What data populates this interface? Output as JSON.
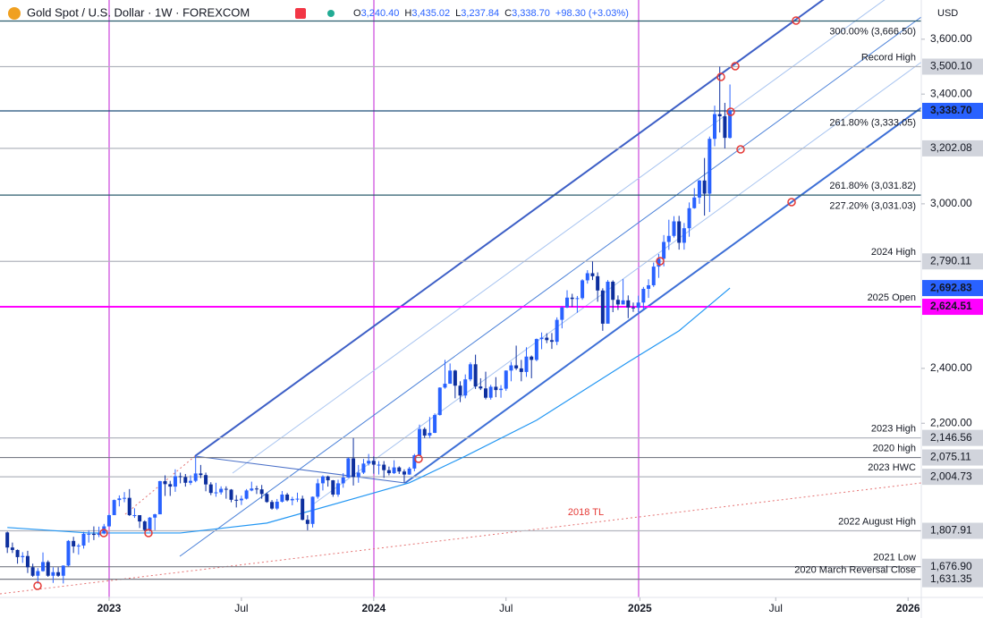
{
  "chart_data": {
    "type": "candlestick",
    "title": "Gold Spot / U.S. Dollar · 1W · FOREXCOM",
    "ohlc_header": [
      {
        "key": "O",
        "value": "3,240.40"
      },
      {
        "key": "H",
        "value": "3,435.02"
      },
      {
        "key": "L",
        "value": "3,237.84"
      },
      {
        "key": "C",
        "value": "3,338.70"
      }
    ],
    "change": "+98.30 (+3.03%)",
    "currency": "USD",
    "up_color": "#2962ff",
    "down_color": "#0d2f9e",
    "xlim": [
      -1.44,
      179.6
    ],
    "xticks": [
      {
        "value": 20,
        "label": "2023"
      },
      {
        "value": 46,
        "label": "Jul"
      },
      {
        "value": 72,
        "label": "2024"
      },
      {
        "value": 98,
        "label": "Jul"
      },
      {
        "value": 124.3,
        "label": "2025"
      },
      {
        "value": 151,
        "label": "Jul"
      },
      {
        "value": 177,
        "label": "2026"
      }
    ],
    "ylim": [
      1565,
      3743
    ],
    "yticks": [
      {
        "value": 3600,
        "label": "3,600.00"
      },
      {
        "value": 3400,
        "label": "3,400.00"
      },
      {
        "value": 3000,
        "label": "3,000.00"
      },
      {
        "value": 2400,
        "label": "2,400.00"
      },
      {
        "value": 2200,
        "label": "2,200.00"
      }
    ],
    "candles": [
      [
        1802,
        1805,
        1727,
        1747
      ],
      [
        1747,
        1765,
        1727,
        1738
      ],
      [
        1738,
        1740,
        1688,
        1712
      ],
      [
        1712,
        1730,
        1691,
        1716
      ],
      [
        1716,
        1735,
        1654,
        1675
      ],
      [
        1675,
        1688,
        1640,
        1644
      ],
      [
        1644,
        1672,
        1615,
        1661
      ],
      [
        1661,
        1729,
        1659,
        1694
      ],
      [
        1694,
        1700,
        1640,
        1644
      ],
      [
        1644,
        1675,
        1618,
        1657
      ],
      [
        1657,
        1675,
        1640,
        1644
      ],
      [
        1644,
        1682,
        1616,
        1681
      ],
      [
        1681,
        1774,
        1678,
        1771
      ],
      [
        1771,
        1786,
        1727,
        1751
      ],
      [
        1751,
        1761,
        1721,
        1754
      ],
      [
        1754,
        1804,
        1743,
        1797
      ],
      [
        1797,
        1810,
        1765,
        1797
      ],
      [
        1797,
        1824,
        1774,
        1793
      ],
      [
        1793,
        1823,
        1785,
        1798
      ],
      [
        1798,
        1833,
        1795,
        1824
      ],
      [
        1824,
        1870,
        1830,
        1865
      ],
      [
        1865,
        1922,
        1867,
        1920
      ],
      [
        1920,
        1937,
        1897,
        1926
      ],
      [
        1926,
        1949,
        1912,
        1928
      ],
      [
        1928,
        1960,
        1862,
        1865
      ],
      [
        1865,
        1890,
        1855,
        1865
      ],
      [
        1865,
        1865,
        1818,
        1842
      ],
      [
        1842,
        1846,
        1806,
        1811
      ],
      [
        1811,
        1858,
        1805,
        1856
      ],
      [
        1856,
        1870,
        1810,
        1868
      ],
      [
        1868,
        1990,
        1885,
        1989
      ],
      [
        1989,
        2010,
        1935,
        1978
      ],
      [
        1978,
        1990,
        1935,
        1969
      ],
      [
        1969,
        2032,
        1950,
        2007
      ],
      [
        2007,
        2020,
        1981,
        2004
      ],
      [
        2004,
        2015,
        1969,
        1983
      ],
      [
        1983,
        2010,
        1975,
        1990
      ],
      [
        1990,
        2081,
        1985,
        2017
      ],
      [
        2017,
        2048,
        2000,
        2011
      ],
      [
        2011,
        2020,
        1952,
        1977
      ],
      [
        1977,
        1985,
        1938,
        1946
      ],
      [
        1946,
        1983,
        1932,
        1948
      ],
      [
        1948,
        1970,
        1940,
        1961
      ],
      [
        1961,
        1970,
        1925,
        1958
      ],
      [
        1958,
        1960,
        1912,
        1921
      ],
      [
        1921,
        1938,
        1893,
        1919
      ],
      [
        1919,
        1936,
        1902,
        1925
      ],
      [
        1925,
        1960,
        1922,
        1955
      ],
      [
        1955,
        1987,
        1952,
        1962
      ],
      [
        1962,
        1972,
        1942,
        1959
      ],
      [
        1959,
        1975,
        1925,
        1942
      ],
      [
        1942,
        1947,
        1910,
        1913
      ],
      [
        1913,
        1920,
        1885,
        1889
      ],
      [
        1889,
        1924,
        1884,
        1914
      ],
      [
        1914,
        1953,
        1911,
        1940
      ],
      [
        1940,
        1946,
        1915,
        1919
      ],
      [
        1919,
        1932,
        1901,
        1924
      ],
      [
        1924,
        1947,
        1913,
        1925
      ],
      [
        1925,
        1936,
        1846,
        1848
      ],
      [
        1848,
        1865,
        1810,
        1833
      ],
      [
        1833,
        1933,
        1820,
        1932
      ],
      [
        1932,
        1997,
        1925,
        1981
      ],
      [
        1981,
        2010,
        1955,
        2006
      ],
      [
        2006,
        2009,
        1969,
        1992
      ],
      [
        1992,
        1993,
        1932,
        1940
      ],
      [
        1940,
        1994,
        1932,
        1981
      ],
      [
        1981,
        2018,
        1965,
        2002
      ],
      [
        2002,
        2075,
        2001,
        2072
      ],
      [
        2072,
        2146,
        1973,
        2004
      ],
      [
        2004,
        2048,
        1983,
        2020
      ],
      [
        2020,
        2070,
        2015,
        2053
      ],
      [
        2053,
        2088,
        2046,
        2063
      ],
      [
        2063,
        2079,
        2016,
        2049
      ],
      [
        2049,
        2062,
        2013,
        2049
      ],
      [
        2049,
        2062,
        2001,
        2029
      ],
      [
        2029,
        2042,
        2010,
        2018
      ],
      [
        2018,
        2065,
        2015,
        2039
      ],
      [
        2039,
        2043,
        2015,
        2024
      ],
      [
        2024,
        2032,
        1984,
        2013
      ],
      [
        2013,
        2041,
        2012,
        2035
      ],
      [
        2035,
        2088,
        2025,
        2083
      ],
      [
        2083,
        2195,
        2083,
        2179
      ],
      [
        2179,
        2185,
        2146,
        2155
      ],
      [
        2155,
        2223,
        2146,
        2165
      ],
      [
        2165,
        2236,
        2164,
        2230
      ],
      [
        2230,
        2331,
        2228,
        2330
      ],
      [
        2330,
        2431,
        2326,
        2344
      ],
      [
        2344,
        2418,
        2354,
        2392
      ],
      [
        2392,
        2395,
        2291,
        2337
      ],
      [
        2337,
        2353,
        2277,
        2301
      ],
      [
        2301,
        2378,
        2291,
        2360
      ],
      [
        2360,
        2422,
        2353,
        2415
      ],
      [
        2415,
        2450,
        2325,
        2334
      ],
      [
        2334,
        2364,
        2321,
        2327
      ],
      [
        2327,
        2388,
        2287,
        2293
      ],
      [
        2293,
        2340,
        2286,
        2333
      ],
      [
        2333,
        2368,
        2295,
        2321
      ],
      [
        2321,
        2339,
        2293,
        2326
      ],
      [
        2326,
        2393,
        2318,
        2392
      ],
      [
        2392,
        2424,
        2353,
        2411
      ],
      [
        2411,
        2483,
        2394,
        2400
      ],
      [
        2400,
        2431,
        2353,
        2387
      ],
      [
        2387,
        2477,
        2369,
        2443
      ],
      [
        2443,
        2447,
        2364,
        2431
      ],
      [
        2431,
        2509,
        2426,
        2507
      ],
      [
        2507,
        2531,
        2470,
        2512
      ],
      [
        2512,
        2528,
        2492,
        2503
      ],
      [
        2503,
        2529,
        2471,
        2497
      ],
      [
        2497,
        2586,
        2485,
        2577
      ],
      [
        2577,
        2626,
        2546,
        2622
      ],
      [
        2622,
        2685,
        2620,
        2658
      ],
      [
        2658,
        2672,
        2624,
        2653
      ],
      [
        2653,
        2664,
        2603,
        2656
      ],
      [
        2656,
        2725,
        2650,
        2721
      ],
      [
        2721,
        2758,
        2709,
        2747
      ],
      [
        2747,
        2790.11,
        2722,
        2736
      ],
      [
        2736,
        2750,
        2643,
        2684
      ],
      [
        2684,
        2692,
        2537,
        2563
      ],
      [
        2563,
        2722,
        2564,
        2716
      ],
      [
        2716,
        2721,
        2605,
        2650
      ],
      [
        2650,
        2666,
        2613,
        2633
      ],
      [
        2633,
        2726,
        2633,
        2648
      ],
      [
        2648,
        2666,
        2583,
        2622
      ],
      [
        2622,
        2640,
        2606,
        2621
      ],
      [
        2621,
        2665,
        2605,
        2640
      ],
      [
        2640,
        2697,
        2614,
        2690
      ],
      [
        2690,
        2725,
        2657,
        2703
      ],
      [
        2703,
        2786,
        2697,
        2771
      ],
      [
        2771,
        2817,
        2730,
        2800
      ],
      [
        2800,
        2886,
        2772,
        2861
      ],
      [
        2861,
        2942,
        2832,
        2883
      ],
      [
        2883,
        2955,
        2877,
        2936
      ],
      [
        2936,
        2956,
        2833,
        2858
      ],
      [
        2858,
        2930,
        2833,
        2911
      ],
      [
        2911,
        3005,
        2880,
        2984
      ],
      [
        2984,
        3057,
        2982,
        3023
      ],
      [
        3023,
        3087,
        3000,
        3085
      ],
      [
        3085,
        3167,
        2957,
        3037
      ],
      [
        3037,
        3245,
        2970,
        3237
      ],
      [
        3237,
        3358,
        3210,
        3327
      ],
      [
        3327,
        3500.1,
        3260,
        3319
      ],
      [
        3319,
        3368,
        3202.08,
        3240.4
      ],
      [
        3240.4,
        3435.02,
        3237.84,
        3338.7
      ]
    ],
    "ma": {
      "color": "#2196f3",
      "x": [
        0,
        16,
        34,
        51,
        69,
        79,
        90,
        104,
        122,
        132,
        142
      ],
      "values": [
        1820,
        1800,
        1800,
        1836,
        1930,
        1983,
        2080,
        2211,
        2423,
        2537,
        2692.83
      ],
      "label": "2,692.83",
      "tag": "#2962ff"
    },
    "levels": [
      {
        "value": 3666.5,
        "note": "300.00% (3,666.50)",
        "color": "#2b5d6e",
        "note_color": "#4a7f98"
      },
      {
        "value": 3500.1,
        "label": "3,500.10",
        "note": "Record High",
        "color": "#b2b5be",
        "note_color": "#6a6d78"
      },
      {
        "value": 3338.7,
        "label": "3,338.70",
        "color": "#1f4e79",
        "tag": "#2962ff"
      },
      {
        "value": 3333.05,
        "note": "261.80% (3,333.05)",
        "note_color": "#4a7f98"
      },
      {
        "value": 3202.08,
        "label": "3,202.08",
        "color": "#b2b5be"
      },
      {
        "value": 3031.82,
        "note": "261.80% (3,031.82)",
        "color": "#2b5d6e",
        "note_color": "#4a7f98"
      },
      {
        "value": 3031.03,
        "note": "227.20% (3,031.03)",
        "note_color": "#4a7f98"
      },
      {
        "value": 2790.11,
        "label": "2,790.11",
        "note": "2024 High",
        "color": "#b2b5be",
        "note_color": "#6a6d78"
      },
      {
        "value": 2624.51,
        "label": "2,624.51",
        "note": "2025 Open",
        "color": "#ff00ff",
        "note_color": "#e000e0",
        "tag": "#ff00ff"
      },
      {
        "value": 2146.56,
        "label": "2,146.56",
        "note": "2023 High",
        "color": "#b2b5be",
        "note_color": "#6a6d78"
      },
      {
        "value": 2075.11,
        "label": "2,075.11",
        "note": "2020 high",
        "color": "#787b86",
        "note_color": "#6a6d78"
      },
      {
        "value": 2004.73,
        "label": "2,004.73",
        "note": "2023 HWC",
        "color": "#b2b5be",
        "note_color": "#6a6d78"
      },
      {
        "value": 1807.91,
        "label": "1,807.91",
        "note": "2022 August High",
        "color": "#b2b5be",
        "note_color": "#6a6d78"
      },
      {
        "value": 1676.9,
        "label": "1,676.90",
        "note": "2021 Low",
        "color": "#787b86",
        "note_color": "#6a6d78"
      },
      {
        "value": 1631.35,
        "label": "1,631.35",
        "note": "2020 March Reversal Close",
        "color": "#787b86",
        "note_color": "#6a6d78"
      }
    ],
    "annotation": "2018 TL"
  }
}
